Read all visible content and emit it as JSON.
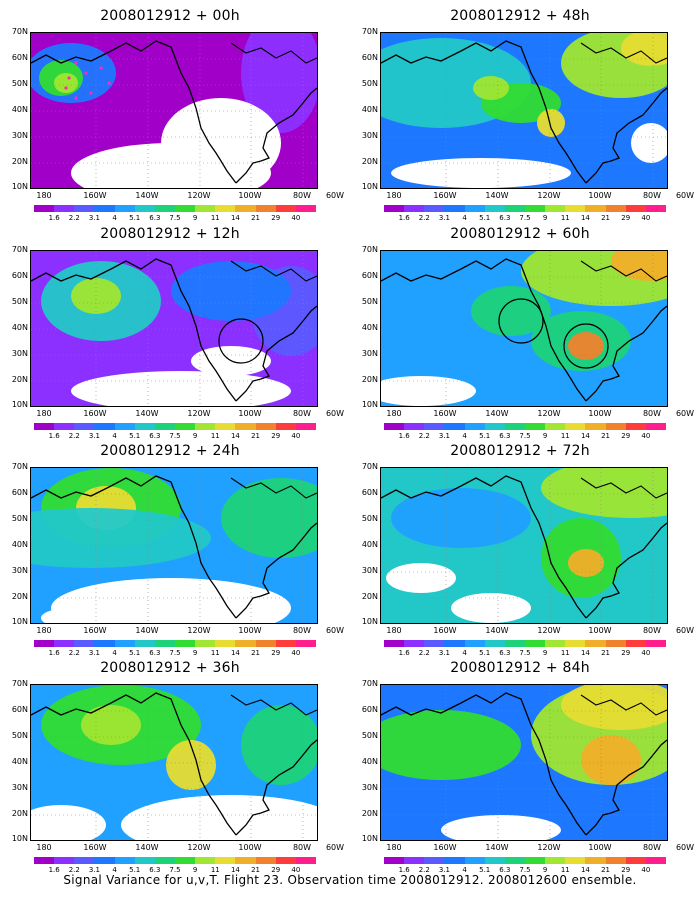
{
  "panels": [
    {
      "title": "2008012912 + 00h"
    },
    {
      "title": "2008012912 + 48h"
    },
    {
      "title": "2008012912 + 12h"
    },
    {
      "title": "2008012912 + 60h"
    },
    {
      "title": "2008012912 + 24h"
    },
    {
      "title": "2008012912 + 72h"
    },
    {
      "title": "2008012912 + 36h"
    },
    {
      "title": "2008012912 + 84h"
    }
  ],
  "lat_labels": [
    "70N",
    "60N",
    "50N",
    "40N",
    "30N",
    "20N",
    "10N"
  ],
  "lon_labels": [
    "180",
    "160W",
    "140W",
    "120W",
    "100W",
    "80W",
    "60W"
  ],
  "colorbar": {
    "labels": [
      "1.6",
      "2.2",
      "3.1",
      "4",
      "5.1",
      "6.3",
      "7.5",
      "9",
      "11",
      "14",
      "21",
      "29",
      "40"
    ],
    "colors": [
      "#a000c8",
      "#8c30ff",
      "#5a5aff",
      "#1e78ff",
      "#20a0ff",
      "#22c8c8",
      "#1ed27a",
      "#32dc32",
      "#a0e632",
      "#e6dc32",
      "#f0af28",
      "#f0822d",
      "#ff3c3c",
      "#ff1e8c"
    ]
  },
  "footer": "Signal Variance for u,v,T. Flight 23. Observation time 2008012912. 2008012600 ensemble."
}
